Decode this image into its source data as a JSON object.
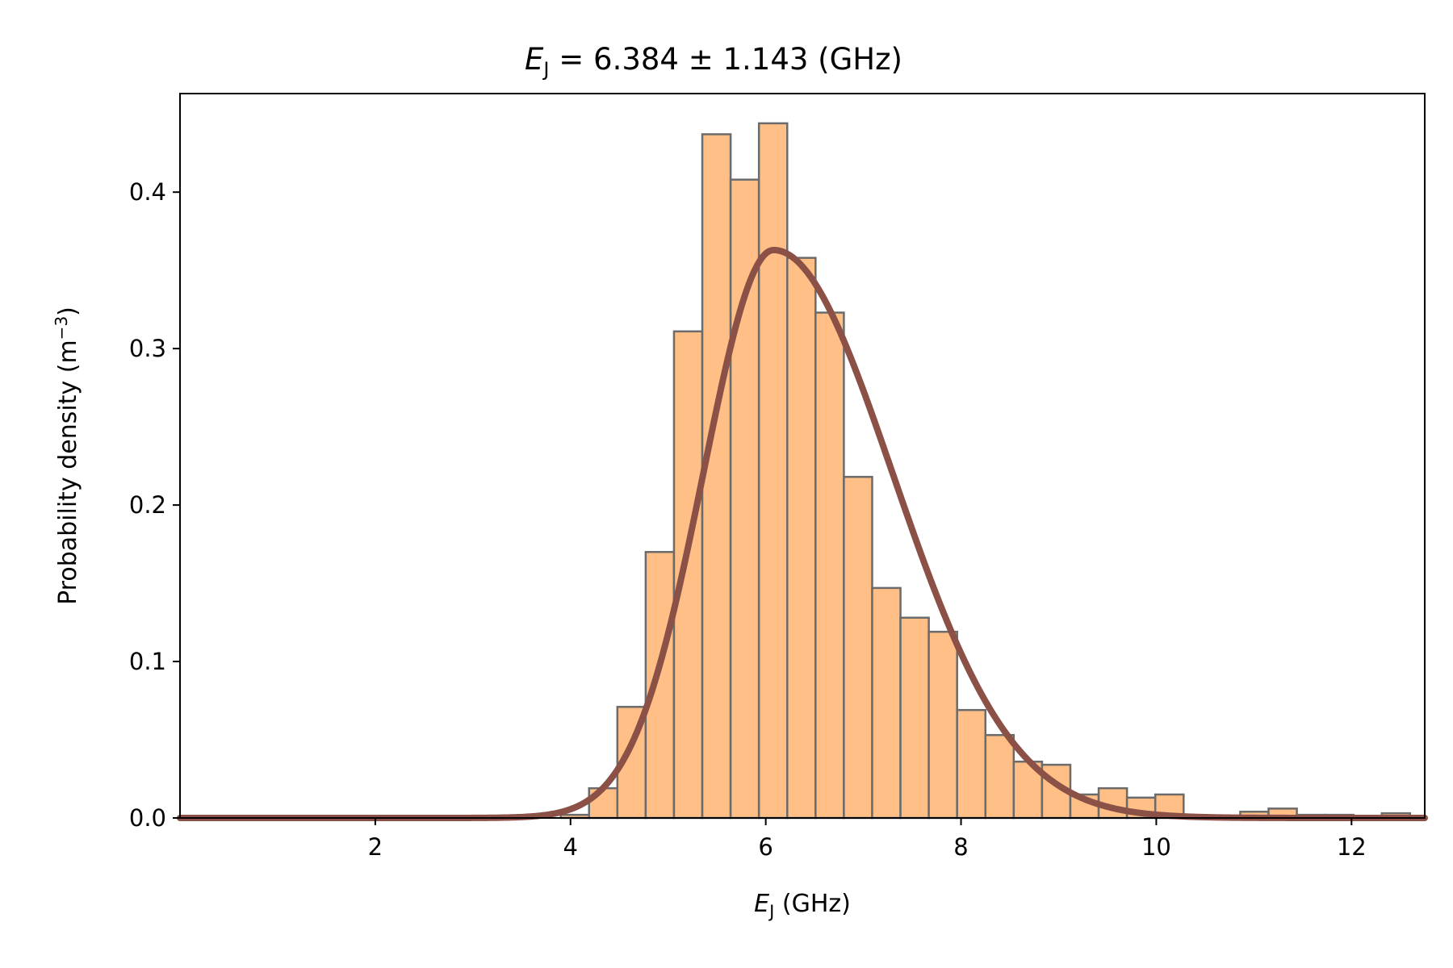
{
  "chart_data": {
    "type": "bar",
    "title": {
      "symbol": "E",
      "subscript": "J",
      "text": " = 6.384 ± 1.143 (GHz)"
    },
    "xlabel": {
      "symbol": "E",
      "subscript": "J",
      "text": " (GHz)"
    },
    "ylabel": {
      "text": "Probability density (m",
      "superscript": "−3",
      "close": ")"
    },
    "xlim": [
      0,
      12.75
    ],
    "ylim": [
      0,
      0.463
    ],
    "x_ticks": [
      2,
      4,
      6,
      8,
      10,
      12
    ],
    "y_ticks": [
      0.0,
      0.1,
      0.2,
      0.3,
      0.4
    ],
    "x_tick_labels": [
      "2",
      "4",
      "6",
      "8",
      "10",
      "12"
    ],
    "y_tick_labels": [
      "0.0",
      "0.1",
      "0.2",
      "0.3",
      "0.4"
    ],
    "grid": false,
    "histogram": {
      "bin_edges": [
        3.9,
        4.19,
        4.48,
        4.77,
        5.06,
        5.35,
        5.64,
        5.93,
        6.22,
        6.51,
        6.8,
        7.09,
        7.38,
        7.67,
        7.96,
        8.25,
        8.54,
        8.83,
        9.12,
        9.41,
        9.7,
        9.99,
        10.28,
        10.57,
        10.86,
        11.15,
        11.44,
        11.73,
        12.02,
        12.31,
        12.6
      ],
      "values": [
        0.002,
        0.019,
        0.071,
        0.17,
        0.311,
        0.437,
        0.408,
        0.444,
        0.358,
        0.323,
        0.218,
        0.147,
        0.128,
        0.119,
        0.069,
        0.053,
        0.036,
        0.034,
        0.015,
        0.019,
        0.013,
        0.015,
        0.0,
        0.0,
        0.004,
        0.006,
        0.002,
        0.002,
        0.0,
        0.003
      ],
      "fill_color": "#ffbf86",
      "edge_color": "#6b6b6b"
    },
    "fit_curve": {
      "type": "skewed bell curve",
      "mode_x": 6.08,
      "peak_density": 0.363,
      "left_width": 0.72,
      "right_width": 1.22,
      "color": "#8b5147"
    }
  }
}
